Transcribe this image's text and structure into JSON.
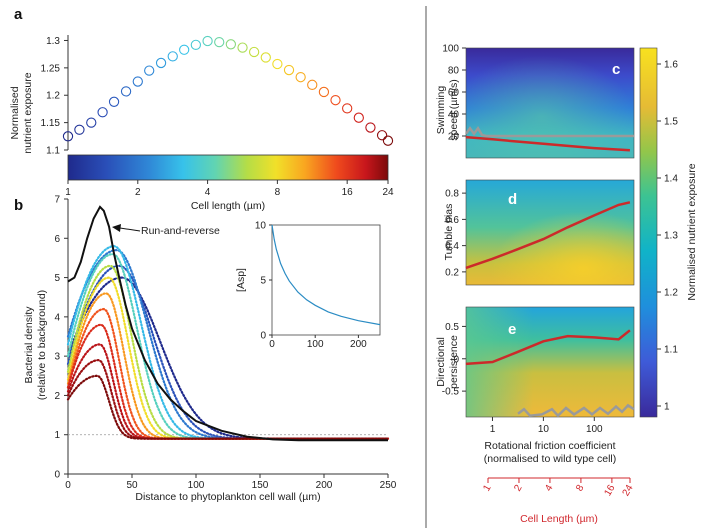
{
  "colors": {
    "path_red": "#cc2a2a",
    "path_gray": "#9a9a9a",
    "inset_line": "#2b8cc4",
    "cell_length_axis": "#d1282e"
  },
  "panels": {
    "a": "a",
    "b": "b",
    "c": "c",
    "d": "d",
    "e": "e"
  },
  "colorbar": {
    "label": "Cell length (µm)",
    "ticks": [
      "1",
      "2",
      "4",
      "8",
      "16",
      "24"
    ]
  },
  "side_colorbar": {
    "label": "Normalised nutrient exposure",
    "ticks": [
      "1",
      "1.1",
      "1.2",
      "1.3",
      "1.4",
      "1.5",
      "1.6"
    ]
  },
  "chart_data": [
    {
      "id": "a",
      "type": "scatter",
      "title": "",
      "ylabel": "Normalised nutrient exposure",
      "xlabel": "Cell length (µm)",
      "xscale": "log",
      "ylim": [
        1.1,
        1.31
      ],
      "yticks": [
        "1.1",
        "1.15",
        "1.2",
        "1.25",
        "1.3"
      ],
      "x": [
        1.0,
        1.12,
        1.26,
        1.41,
        1.58,
        1.78,
        2.0,
        2.24,
        2.52,
        2.83,
        3.17,
        3.56,
        4.0,
        4.49,
        5.04,
        5.66,
        6.35,
        7.13,
        8.0,
        8.98,
        10.08,
        11.31,
        12.7,
        14.25,
        16.0,
        17.96,
        20.16,
        22.63,
        24.0
      ],
      "y": [
        1.125,
        1.137,
        1.15,
        1.169,
        1.188,
        1.207,
        1.225,
        1.245,
        1.259,
        1.271,
        1.283,
        1.292,
        1.299,
        1.297,
        1.293,
        1.287,
        1.279,
        1.269,
        1.257,
        1.246,
        1.233,
        1.219,
        1.206,
        1.191,
        1.176,
        1.159,
        1.141,
        1.127,
        1.117
      ]
    },
    {
      "id": "b",
      "type": "line",
      "xlabel": "Distance to phytoplankton cell wall (µm)",
      "ylabel": "Bacterial density (relative to background)",
      "xlim": [
        0,
        250
      ],
      "ylim": [
        0,
        7
      ],
      "xticks": [
        "0",
        "50",
        "100",
        "150",
        "200",
        "250"
      ],
      "yticks": [
        "0",
        "1",
        "2",
        "3",
        "4",
        "5",
        "6",
        "7"
      ],
      "reference_line": 1,
      "annotation": "Run-and-reverse",
      "series_run_and_reverse": {
        "name": "Run-and-reverse",
        "x": [
          0,
          5,
          10,
          15,
          20,
          25,
          28,
          32,
          36,
          40,
          45,
          50,
          60,
          70,
          80,
          90,
          100,
          120,
          140,
          160,
          180,
          200,
          230,
          250
        ],
        "y": [
          4.9,
          5.0,
          5.4,
          6.0,
          6.5,
          6.8,
          6.7,
          6.3,
          5.6,
          5.0,
          4.3,
          3.7,
          2.9,
          2.3,
          1.9,
          1.6,
          1.35,
          1.1,
          0.95,
          0.88,
          0.86,
          0.86,
          0.86,
          0.86
        ]
      },
      "dotted_series": [
        {
          "length": 1,
          "x0": 3.0,
          "peak": 5.0,
          "xp": 42,
          "w": 40
        },
        {
          "length": 1.5,
          "x0": 2.8,
          "peak": 5.3,
          "xp": 40,
          "w": 35
        },
        {
          "length": 2,
          "x0": 3.5,
          "peak": 5.7,
          "xp": 38,
          "w": 32
        },
        {
          "length": 3,
          "x0": 3.3,
          "peak": 5.8,
          "xp": 36,
          "w": 28
        },
        {
          "length": 4,
          "x0": 3.0,
          "peak": 5.6,
          "xp": 35,
          "w": 25
        },
        {
          "length": 6,
          "x0": 2.6,
          "peak": 5.3,
          "xp": 33,
          "w": 22
        },
        {
          "length": 8,
          "x0": 2.4,
          "peak": 5.0,
          "xp": 32,
          "w": 20
        },
        {
          "length": 11,
          "x0": 2.3,
          "peak": 4.6,
          "xp": 30,
          "w": 18
        },
        {
          "length": 14,
          "x0": 2.2,
          "peak": 4.2,
          "xp": 28,
          "w": 16
        },
        {
          "length": 17,
          "x0": 2.2,
          "peak": 3.8,
          "xp": 26,
          "w": 15
        },
        {
          "length": 20,
          "x0": 2.1,
          "peak": 3.3,
          "xp": 25,
          "w": 14
        },
        {
          "length": 22,
          "x0": 2.0,
          "peak": 2.9,
          "xp": 24,
          "w": 13
        },
        {
          "length": 24,
          "x0": 1.9,
          "peak": 2.5,
          "xp": 23,
          "w": 12
        }
      ]
    },
    {
      "id": "b_inset",
      "type": "line",
      "ylabel": "[Asp]",
      "xlim": [
        0,
        250
      ],
      "ylim": [
        0,
        10
      ],
      "xticks": [
        "0",
        "100",
        "200"
      ],
      "yticks": [
        "0",
        "5",
        "10"
      ],
      "x": [
        0,
        5,
        10,
        20,
        30,
        40,
        60,
        80,
        100,
        130,
        160,
        200,
        250
      ],
      "y": [
        10,
        8.7,
        7.8,
        6.5,
        5.6,
        4.9,
        3.9,
        3.2,
        2.7,
        2.1,
        1.7,
        1.3,
        0.95
      ]
    },
    {
      "id": "c",
      "type": "heatmap",
      "ylabel": "Swimming speed (µm/s)",
      "yticks": [
        "20",
        "40",
        "60",
        "80",
        "100"
      ],
      "ylim": [
        0,
        100
      ],
      "red_path": {
        "x": [
          0.3,
          1,
          3,
          10,
          30,
          100,
          500
        ],
        "y": [
          19,
          17,
          15,
          13,
          11,
          9,
          7
        ]
      },
      "gray_path_y": 20
    },
    {
      "id": "d",
      "type": "heatmap",
      "ylabel": "Tumble bias",
      "yticks": [
        "0.2",
        "0.4",
        "0.6",
        "0.8"
      ],
      "ylim": [
        0.1,
        0.9
      ],
      "red_path": {
        "x": [
          0.3,
          1,
          3,
          10,
          30,
          100,
          300,
          500
        ],
        "y": [
          0.23,
          0.3,
          0.37,
          0.45,
          0.54,
          0.63,
          0.71,
          0.73
        ]
      }
    },
    {
      "id": "e",
      "type": "heatmap",
      "ylabel": "Directional persistence",
      "xlabel": "Rotational friction coefficient (normalised to wild type cell)",
      "xticks": [
        "1",
        "10",
        "100"
      ],
      "yticks": [
        "0.5",
        "0",
        "-0.5"
      ],
      "ylim": [
        -0.9,
        0.8
      ],
      "red_path": {
        "x": [
          0.3,
          1,
          3,
          10,
          30,
          100,
          300,
          500
        ],
        "y": [
          -0.08,
          -0.05,
          0.1,
          0.27,
          0.35,
          0.33,
          0.3,
          0.44
        ]
      }
    }
  ],
  "right_panel": {
    "xlabel_line1": "Rotational friction coefficient",
    "xlabel_line2": "(normalised to wild type cell)",
    "cell_axis_label": "Cell Length (µm)",
    "cell_axis_ticks": [
      "1",
      "2",
      "4",
      "8",
      "16",
      "24"
    ]
  },
  "labels": {
    "a_ylabel_1": "Normalised",
    "a_ylabel_2": "nutrient exposure",
    "b_ylabel_1": "Bacterial density",
    "b_ylabel_2": "(relative to background)",
    "c_ylabel_1": "Swimming",
    "c_ylabel_2": "speed (µm/s)",
    "e_ylabel_1": "Directional",
    "e_ylabel_2": "persistence"
  }
}
